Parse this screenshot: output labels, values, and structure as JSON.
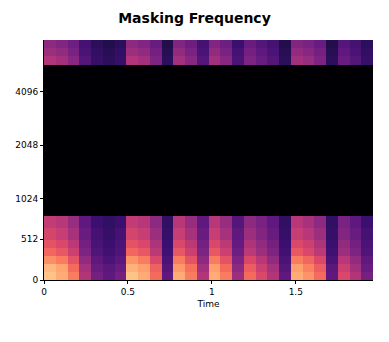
{
  "chart_data": {
    "type": "heatmap",
    "title": "Masking Frequency",
    "x_label": "Time",
    "xlim": [
      0,
      1.96
    ],
    "xticks": [
      0,
      0.5,
      1,
      1.5
    ],
    "ylim": [
      0,
      8000
    ],
    "yticks": [
      0,
      512,
      1024,
      2048,
      4096
    ],
    "grid": false,
    "color_range": [
      -80,
      0
    ],
    "x_bins": [
      0,
      0.07,
      0.14,
      0.21,
      0.28,
      0.35,
      0.42,
      0.49,
      0.56,
      0.63,
      0.7,
      0.77,
      0.84,
      0.91,
      0.98,
      1.05,
      1.12,
      1.19,
      1.26,
      1.33,
      1.4,
      1.47,
      1.54,
      1.61,
      1.68,
      1.75,
      1.82,
      1.89,
      1.96
    ],
    "y_bins": [
      0,
      100,
      200,
      300,
      400,
      500,
      650,
      800,
      1500,
      3000,
      5770,
      6500,
      7200,
      8000
    ],
    "values": [
      [
        -10,
        -14,
        -22,
        -41,
        -53,
        -57,
        -53,
        -10,
        -14,
        -25,
        -57,
        -14,
        -22,
        -41,
        -14,
        -22,
        -45,
        -25,
        -33,
        -41,
        -57,
        -14,
        -18,
        -25,
        -57,
        -33,
        -41,
        -53
      ],
      [
        -12,
        -15,
        -25,
        -43,
        -55,
        -58,
        -55,
        -13,
        -16,
        -27,
        -59,
        -17,
        -24,
        -44,
        -16,
        -25,
        -48,
        -28,
        -36,
        -43,
        -59,
        -16,
        -21,
        -28,
        -58,
        -36,
        -44,
        -55
      ],
      [
        -19,
        -22,
        -30,
        -47,
        -57,
        -61,
        -58,
        -18,
        -22,
        -33,
        -61,
        -22,
        -30,
        -48,
        -22,
        -30,
        -51,
        -33,
        -40,
        -47,
        -61,
        -22,
        -26,
        -33,
        -61,
        -40,
        -47,
        -57
      ],
      [
        -26,
        -29,
        -36,
        -51,
        -60,
        -63,
        -60,
        -26,
        -29,
        -39,
        -63,
        -29,
        -36,
        -51,
        -29,
        -36,
        -54,
        -39,
        -45,
        -51,
        -63,
        -29,
        -33,
        -39,
        -63,
        -45,
        -51,
        -60
      ],
      [
        -30,
        -33,
        -39,
        -53,
        -61,
        -64,
        -61,
        -30,
        -33,
        -42,
        -64,
        -33,
        -39,
        -53,
        -33,
        -39,
        -56,
        -42,
        -47,
        -53,
        -64,
        -33,
        -36,
        -42,
        -64,
        -47,
        -53,
        -61
      ],
      [
        -34,
        -37,
        -43,
        -55,
        -62,
        -65,
        -62,
        -34,
        -37,
        -45,
        -65,
        -37,
        -43,
        -55,
        -37,
        -43,
        -57,
        -45,
        -50,
        -55,
        -65,
        -37,
        -40,
        -45,
        -65,
        -50,
        -55,
        -62
      ],
      [
        -38,
        -40,
        -46,
        -57,
        -64,
        -66,
        -64,
        -38,
        -40,
        -48,
        -66,
        -40,
        -46,
        -57,
        -40,
        -46,
        -59,
        -48,
        -52,
        -57,
        -66,
        -40,
        -43,
        -48,
        -66,
        -52,
        -57,
        -64
      ],
      [
        -80,
        -80,
        -80,
        -80,
        -80,
        -80,
        -80,
        -80,
        -80,
        -80,
        -80,
        -80,
        -80,
        -80,
        -80,
        -80,
        -80,
        -80,
        -80,
        -80,
        -80,
        -80,
        -80,
        -80,
        -80,
        -80,
        -80,
        -80
      ],
      [
        -80,
        -80,
        -80,
        -80,
        -80,
        -80,
        -80,
        -80,
        -80,
        -80,
        -80,
        -80,
        -80,
        -80,
        -80,
        -80,
        -80,
        -80,
        -80,
        -80,
        -80,
        -80,
        -80,
        -80,
        -80,
        -80,
        -80,
        -80
      ],
      [
        -80,
        -80,
        -80,
        -80,
        -80,
        -80,
        -80,
        -80,
        -80,
        -80,
        -80,
        -80,
        -80,
        -80,
        -80,
        -80,
        -80,
        -80,
        -80,
        -80,
        -80,
        -80,
        -80,
        -80,
        -80,
        -80,
        -80,
        -80
      ],
      [
        -41,
        -44,
        -49,
        -59,
        -65,
        -67,
        -65,
        -41,
        -44,
        -51,
        -67,
        -44,
        -49,
        -59,
        -44,
        -49,
        -61,
        -51,
        -55,
        -59,
        -67,
        -44,
        -46,
        -51,
        -67,
        -55,
        -59,
        -65
      ],
      [
        -45,
        -47,
        -52,
        -61,
        -66,
        -68,
        -66,
        -45,
        -47,
        -53,
        -68,
        -47,
        -52,
        -61,
        -47,
        -52,
        -62,
        -53,
        -57,
        -61,
        -68,
        -47,
        -49,
        -53,
        -68,
        -57,
        -61,
        -66
      ],
      [
        -48,
        -50,
        -54,
        -62,
        -67,
        -69,
        -67,
        -48,
        -50,
        -55,
        -69,
        -50,
        -54,
        -62,
        -50,
        -54,
        -64,
        -55,
        -59,
        -62,
        -69,
        -50,
        -52,
        -55,
        -69,
        -59,
        -62,
        -67
      ]
    ]
  }
}
